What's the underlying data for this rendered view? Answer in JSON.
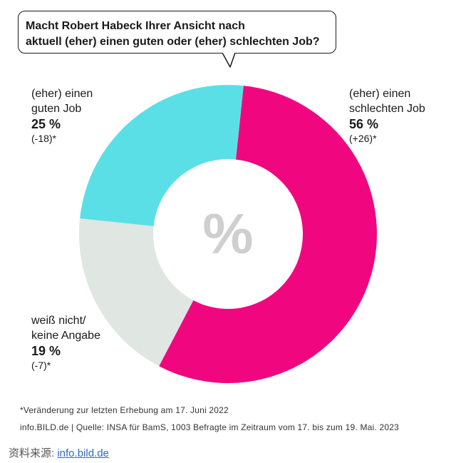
{
  "question": {
    "line1": "Macht Robert Habeck Ihrer Ansicht nach",
    "line2": "aktuell (eher) einen guten oder (eher) schlechten Job?"
  },
  "center_symbol": "%",
  "labels": {
    "bad": {
      "line1": "(eher) einen",
      "line2": "schlechten Job",
      "value": "56 %",
      "change": "(+26)*"
    },
    "good": {
      "line1": "(eher) einen",
      "line2": "guten Job",
      "value": "25 %",
      "change": "(-18)*"
    },
    "unknown": {
      "line1": "weiß nicht/",
      "line2": "keine Angabe",
      "value": "19 %",
      "change": "(-7)*"
    }
  },
  "footnote": "*Veränderung zur letzten Erhebung am 17. Juni 2022",
  "source_line": "info.BILD.de | Quelle: INSA für BamS, 1003 Befragte im Zeitraum vom 17. bis zum 19. Mai. 2023",
  "watermark": {
    "prefix": "资料来源:",
    "link": "info.bild.de"
  },
  "colors": {
    "bad": "#f0077f",
    "good": "#5bdfe6",
    "unknown": "#e0e6e2"
  },
  "chart_data": {
    "type": "pie",
    "donut": true,
    "title": "Macht Robert Habeck Ihrer Ansicht nach aktuell (eher) einen guten oder (eher) schlechten Job?",
    "slices": [
      {
        "label": "(eher) einen schlechten Job",
        "value": 56,
        "change": 26,
        "color": "#f0077f"
      },
      {
        "label": "weiß nicht/ keine Angabe",
        "value": 19,
        "change": -7,
        "color": "#e0e6e2"
      },
      {
        "label": "(eher) einen guten Job",
        "value": 25,
        "change": -18,
        "color": "#5bdfe6"
      }
    ],
    "units": "%"
  }
}
